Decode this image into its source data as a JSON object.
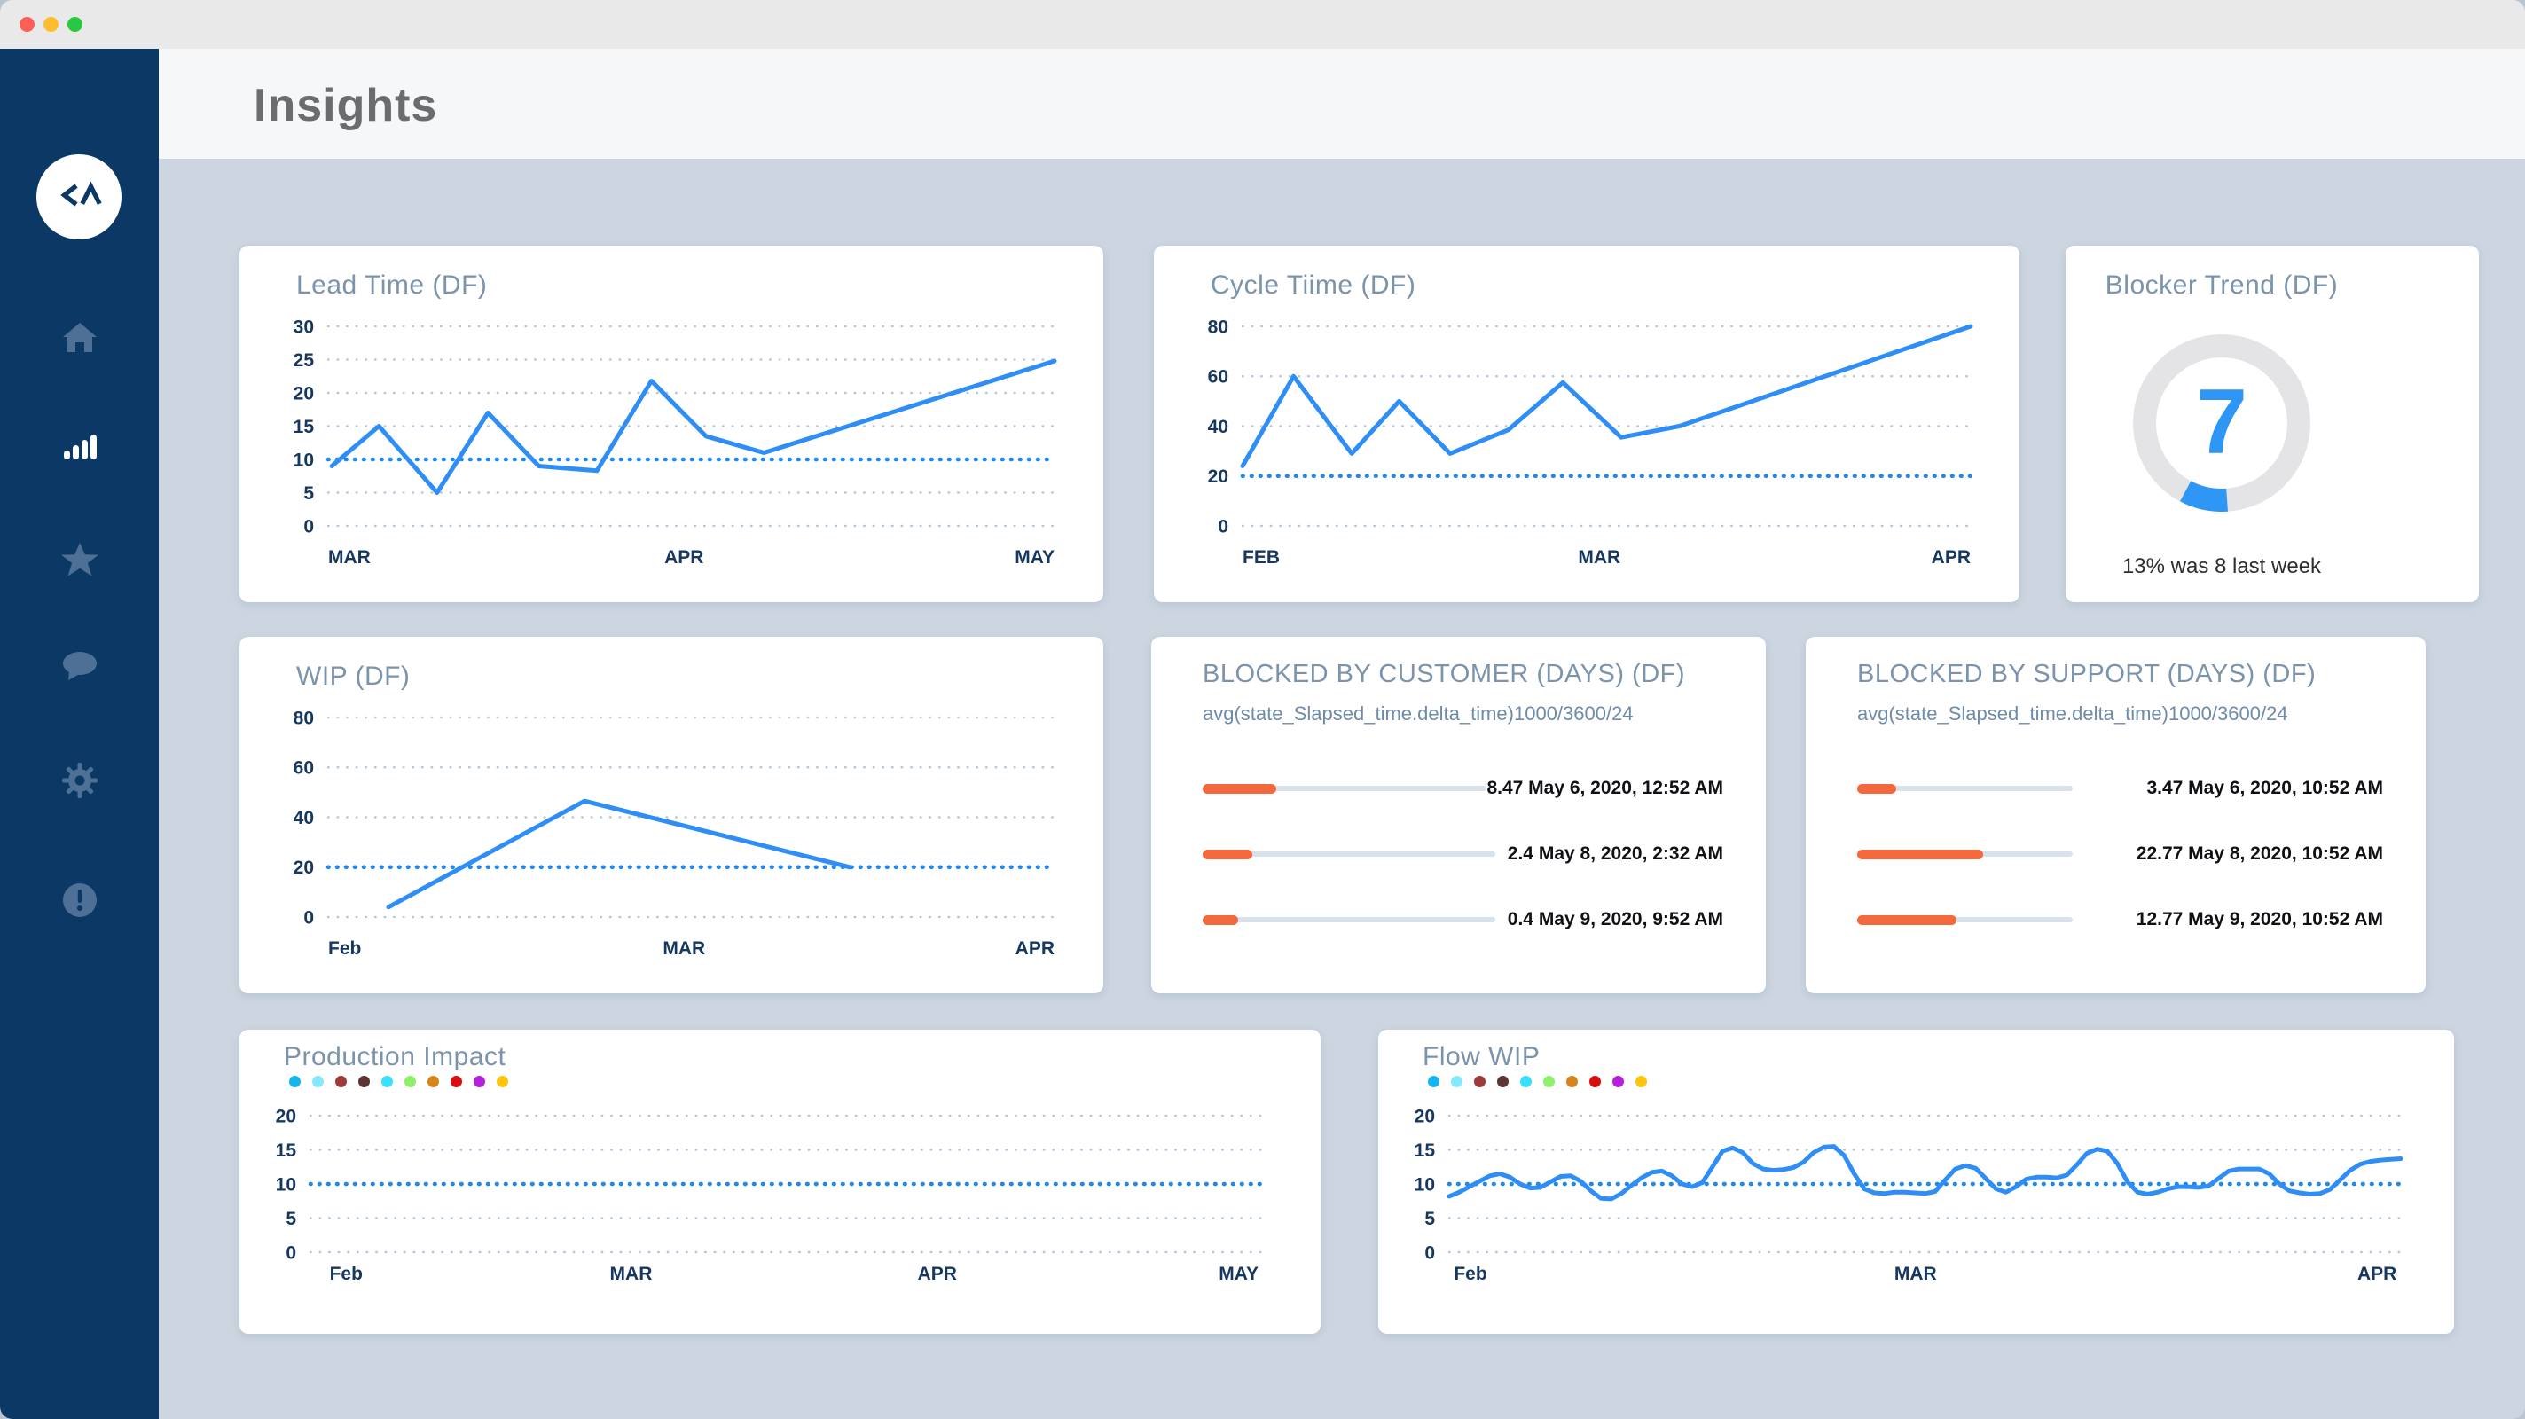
{
  "window": {
    "traffic_lights": [
      "#ff5e57",
      "#ffbd2e",
      "#28c840"
    ]
  },
  "header": {
    "title": "Insights"
  },
  "sidebar": {
    "logo_icon": "code-caret-logo",
    "items": [
      {
        "icon": "home-icon",
        "active": false
      },
      {
        "icon": "bar-chart-icon",
        "active": true
      },
      {
        "icon": "star-icon",
        "active": false
      },
      {
        "icon": "chat-icon",
        "active": false
      },
      {
        "icon": "gear-icon",
        "active": false
      },
      {
        "icon": "alert-icon",
        "active": false
      }
    ]
  },
  "theme": {
    "page_bg": "#ccd5e0",
    "titlebar_bg": "#e9e9e9",
    "sidebar_bg": "#0c3866",
    "sidebar_icon_muted": "#4f7096",
    "sidebar_icon_active": "#ffffff",
    "card_title": "#7b93ab",
    "axis_label": "#16375f",
    "grid_dot": "#b3c6dc",
    "line_blue": "#2f8ef5",
    "threshold_blue": "#1f88e8",
    "bar_orange": "#f4683e",
    "bar_track": "#d9e1ea",
    "gauge_ring": "#e4e4e7",
    "gauge_blue": "#2e96f5"
  },
  "chart_data": [
    {
      "id": "lead_time",
      "type": "line",
      "title": "Lead Time (DF)",
      "yticks": [
        30,
        25,
        20,
        15,
        10,
        5,
        0
      ],
      "ylim": [
        0,
        30
      ],
      "threshold": 10,
      "grid": "dotted",
      "legend_position": "none",
      "x_labels": [
        {
          "label": "MAR",
          "f": 0.0
        },
        {
          "label": "APR",
          "f": 0.49
        },
        {
          "label": "MAY",
          "f": 1.0
        }
      ],
      "series": [
        {
          "name": "lead_time_days",
          "color": "#2f8ef5",
          "x": [
            0.005,
            0.07,
            0.15,
            0.22,
            0.29,
            0.37,
            0.445,
            0.52,
            0.6,
            1.0
          ],
          "values": [
            9,
            15,
            5,
            17,
            9,
            8.3,
            21.8,
            13.5,
            11,
            24.8
          ]
        }
      ]
    },
    {
      "id": "cycle_time",
      "type": "line",
      "title": "Cycle Tiime (DF)",
      "yticks": [
        80,
        60,
        40,
        20,
        0
      ],
      "ylim": [
        0,
        80
      ],
      "threshold": 20,
      "grid": "dotted",
      "legend_position": "none",
      "x_labels": [
        {
          "label": "FEB",
          "f": 0.0
        },
        {
          "label": "MAR",
          "f": 0.49
        },
        {
          "label": "APR",
          "f": 1.0
        }
      ],
      "series": [
        {
          "name": "cycle_time_days",
          "color": "#2f8ef5",
          "x": [
            0.0,
            0.07,
            0.15,
            0.215,
            0.285,
            0.365,
            0.44,
            0.52,
            0.6,
            1.0
          ],
          "values": [
            24,
            60,
            29,
            50,
            29,
            38.5,
            57.5,
            35.5,
            40,
            80
          ]
        }
      ]
    },
    {
      "id": "blocker_trend",
      "type": "gauge",
      "title": "Blocker Trend (DF)",
      "value": "7",
      "percent_label": "13%",
      "caption": "13% was 8 last week",
      "arc_start_deg": 176,
      "arc_end_deg": 208,
      "ring_color": "#e4e4e7",
      "arc_color": "#2e96f5"
    },
    {
      "id": "wip",
      "type": "line",
      "title": "WIP (DF)",
      "yticks": [
        80,
        60,
        40,
        20,
        0
      ],
      "ylim": [
        0,
        80
      ],
      "threshold": 20,
      "grid": "dotted",
      "legend_position": "none",
      "x_labels": [
        {
          "label": "Feb",
          "f": 0.0
        },
        {
          "label": "MAR",
          "f": 0.49
        },
        {
          "label": "APR",
          "f": 1.0
        }
      ],
      "series": [
        {
          "name": "wip_count",
          "color": "#2f8ef5",
          "x": [
            0.083,
            0.353,
            0.718
          ],
          "values": [
            4,
            46.5,
            20
          ]
        }
      ]
    },
    {
      "id": "blocked_by_customer",
      "type": "hbar",
      "title": "BLOCKED BY CUSTOMER (DAYS) (DF)",
      "subtitle": "avg(state_Slapsed_time.delta_time)1000/3600/24",
      "bar_color": "#f4683e",
      "track_color": "#d9e1ea",
      "rows": [
        {
          "value": 8.47,
          "fraction": 0.26,
          "value_label": "8.47 May 6, 2020, 12:52 AM"
        },
        {
          "value": 2.4,
          "fraction": 0.17,
          "value_label": "2.4 May 8, 2020, 2:32 AM"
        },
        {
          "value": 0.4,
          "fraction": 0.12,
          "value_label": "0.4 May 9, 2020, 9:52 AM"
        }
      ]
    },
    {
      "id": "blocked_by_support",
      "type": "hbar",
      "title": "BLOCKED BY SUPPORT (DAYS) (DF)",
      "subtitle": "avg(state_Slapsed_time.delta_time)1000/3600/24",
      "bar_color": "#f4683e",
      "track_color": "#d9e1ea",
      "rows": [
        {
          "value": 3.47,
          "fraction": 0.18,
          "value_label": "3.47 May 6, 2020, 10:52 AM"
        },
        {
          "value": 22.77,
          "fraction": 0.585,
          "value_label": "22.77 May 8, 2020, 10:52 AM"
        },
        {
          "value": 12.77,
          "fraction": 0.46,
          "value_label": "12.77 May 9, 2020, 10:52 AM"
        }
      ]
    },
    {
      "id": "production_impact",
      "type": "line",
      "title": "Production Impact",
      "yticks": [
        20,
        15,
        10,
        5,
        0
      ],
      "ylim": [
        0,
        20
      ],
      "threshold": 10,
      "grid": "dotted",
      "legend_position": "top-left",
      "legend_colors": [
        "#18b4ee",
        "#86e9fb",
        "#9d3a3a",
        "#5e3434",
        "#3ae0fb",
        "#8ff06c",
        "#d8841d",
        "#d80f0f",
        "#b322d8",
        "#ffc40d"
      ],
      "x_labels": [
        {
          "label": "Feb",
          "f": 0.02
        },
        {
          "label": "MAR",
          "f": 0.335
        },
        {
          "label": "APR",
          "f": 0.655
        },
        {
          "label": "MAY",
          "f": 0.97
        }
      ],
      "series": []
    },
    {
      "id": "flow_wip",
      "type": "line",
      "title": "Flow WIP",
      "yticks": [
        20,
        15,
        10,
        5,
        0
      ],
      "ylim": [
        0,
        20
      ],
      "threshold": 10,
      "grid": "dotted",
      "legend_position": "top-left",
      "legend_colors": [
        "#18b4ee",
        "#86e9fb",
        "#9d3a3a",
        "#5e3434",
        "#3ae0fb",
        "#8ff06c",
        "#d8841d",
        "#d80f0f",
        "#b322d8",
        "#ffc40d"
      ],
      "x_labels": [
        {
          "label": "Feb",
          "f": 0.005
        },
        {
          "label": "MAR",
          "f": 0.49
        },
        {
          "label": "APR",
          "f": 0.975
        }
      ],
      "series": [
        {
          "name": "flow_wip",
          "color": "#2f8ef5",
          "values": [
            8.2,
            8.8,
            9.6,
            10.4,
            11.2,
            11.5,
            11.0,
            10.0,
            9.4,
            9.5,
            10.3,
            11.1,
            11.2,
            10.4,
            9.0,
            7.9,
            7.8,
            8.6,
            9.8,
            10.9,
            11.7,
            11.9,
            11.2,
            10.0,
            9.6,
            10.2,
            12.5,
            14.8,
            15.3,
            14.6,
            13.0,
            12.2,
            12.0,
            12.1,
            12.4,
            13.2,
            14.6,
            15.4,
            15.5,
            14.2,
            11.5,
            9.3,
            8.7,
            8.6,
            8.8,
            8.8,
            8.7,
            8.6,
            8.9,
            10.6,
            12.2,
            12.7,
            12.3,
            10.8,
            9.3,
            8.8,
            9.6,
            10.7,
            11.0,
            11.0,
            10.9,
            11.3,
            12.8,
            14.5,
            15.1,
            14.8,
            13.0,
            10.3,
            8.8,
            8.5,
            8.8,
            9.3,
            9.6,
            9.6,
            9.5,
            9.7,
            10.8,
            11.9,
            12.2,
            12.2,
            12.2,
            11.5,
            10.0,
            9.0,
            8.7,
            8.5,
            8.6,
            9.2,
            10.6,
            12.0,
            12.9,
            13.3,
            13.5,
            13.6,
            13.7
          ]
        }
      ]
    }
  ]
}
